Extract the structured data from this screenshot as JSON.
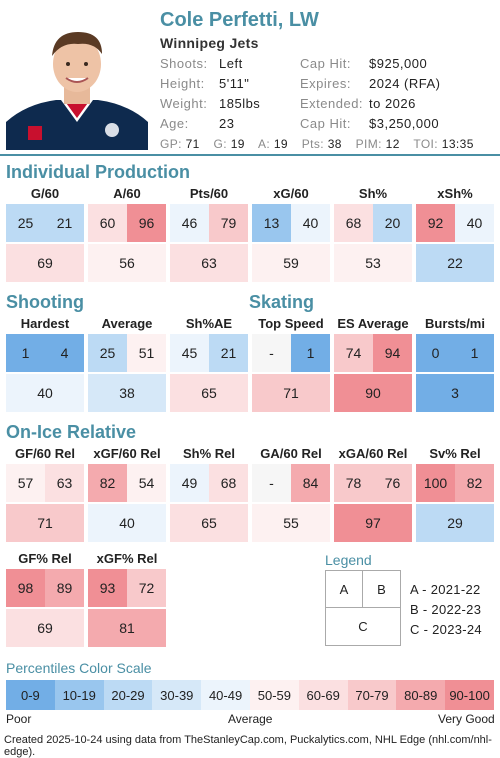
{
  "player": {
    "name": "Cole Perfetti, LW",
    "team": "Winnipeg Jets",
    "shoots_label": "Shoots:",
    "shoots": "Left",
    "height_label": "Height:",
    "height": "5'11\"",
    "weight_label": "Weight:",
    "weight": "185lbs",
    "age_label": "Age:",
    "age": "23",
    "caphit_label": "Cap Hit:",
    "caphit": "$925,000",
    "expires_label": "Expires:",
    "expires": "2024 (RFA)",
    "extended_label": "Extended:",
    "extended": "to 2026",
    "caphit2_label": "Cap Hit:",
    "caphit2": "$3,250,000"
  },
  "totals": {
    "gp_label": "GP:",
    "gp": "71",
    "g_label": "G:",
    "g": "19",
    "a_label": "A:",
    "a": "19",
    "pts_label": "Pts:",
    "pts": "38",
    "pim_label": "PIM:",
    "pim": "12",
    "toi_label": "TOI:",
    "toi": "13:35"
  },
  "sections": {
    "individual": "Individual Production",
    "shooting": "Shooting",
    "skating": "Skating",
    "onice": "On-Ice Relative"
  },
  "metrics": {
    "g60": {
      "title": "G/60",
      "a": "25",
      "b": "21",
      "c": "69"
    },
    "a60": {
      "title": "A/60",
      "a": "60",
      "b": "96",
      "c": "56"
    },
    "pts60": {
      "title": "Pts/60",
      "a": "46",
      "b": "79",
      "c": "63"
    },
    "xg60": {
      "title": "xG/60",
      "a": "13",
      "b": "40",
      "c": "59"
    },
    "shpct": {
      "title": "Sh%",
      "a": "68",
      "b": "20",
      "c": "53"
    },
    "xshpct": {
      "title": "xSh%",
      "a": "92",
      "b": "40",
      "c": "22"
    },
    "hardest": {
      "title": "Hardest",
      "a": "1",
      "b": "4",
      "c": "40"
    },
    "average": {
      "title": "Average",
      "a": "25",
      "b": "51",
      "c": "38"
    },
    "shae": {
      "title": "Sh%AE",
      "a": "45",
      "b": "21",
      "c": "65"
    },
    "topspeed": {
      "title": "Top Speed",
      "a": "-",
      "b": "1",
      "c": "71"
    },
    "esavg": {
      "title": "ES Average",
      "a": "74",
      "b": "94",
      "c": "90"
    },
    "bursts": {
      "title": "Bursts/mi",
      "a": "0",
      "b": "1",
      "c": "3"
    },
    "gf60": {
      "title": "GF/60 Rel",
      "a": "57",
      "b": "63",
      "c": "71"
    },
    "xgf60": {
      "title": "xGF/60 Rel",
      "a": "82",
      "b": "54",
      "c": "40"
    },
    "shrel": {
      "title": "Sh% Rel",
      "a": "49",
      "b": "68",
      "c": "65"
    },
    "ga60": {
      "title": "GA/60 Rel",
      "a": "-",
      "b": "84",
      "c": "55"
    },
    "xga60": {
      "title": "xGA/60 Rel",
      "a": "78",
      "b": "76",
      "c": "97"
    },
    "svrel": {
      "title": "Sv% Rel",
      "a": "100",
      "b": "82",
      "c": "29"
    },
    "gfpct": {
      "title": "GF% Rel",
      "a": "98",
      "b": "89",
      "c": "69"
    },
    "xgfpct": {
      "title": "xGF% Rel",
      "a": "93",
      "b": "72",
      "c": "81"
    }
  },
  "legend": {
    "title": "Legend",
    "a": "A",
    "b": "B",
    "c": "C",
    "a_text": "A - 2021-22",
    "b_text": "B - 2022-23",
    "c_text": "C - 2023-24"
  },
  "scale": {
    "title": "Percentiles Color Scale",
    "bins": [
      "0-9",
      "10-19",
      "20-29",
      "30-39",
      "40-49",
      "50-59",
      "60-69",
      "70-79",
      "80-89",
      "90-100"
    ],
    "colors": [
      "#72aee6",
      "#99c6ee",
      "#bcdaf4",
      "#d6e8f8",
      "#ecf4fc",
      "#fdf1f1",
      "#fbe0e1",
      "#f8c9cb",
      "#f4aaae",
      "#f08f95"
    ],
    "poor": "Poor",
    "average": "Average",
    "very_good": "Very Good"
  },
  "footer": "Created 2025-10-24 using data from TheStanleyCap.com, Puckalytics.com, NHL Edge (nhl.com/nhl-edge)."
}
